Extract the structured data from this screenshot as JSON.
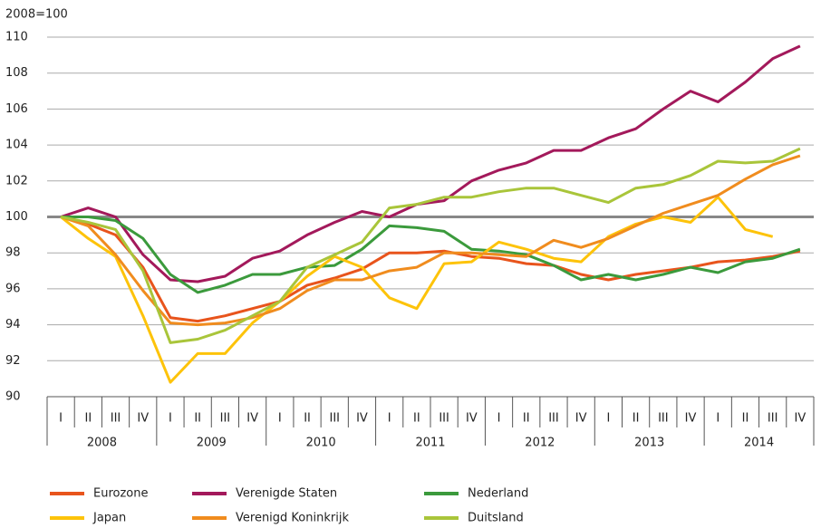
{
  "chart_data": {
    "type": "line",
    "y_label": "2008=100",
    "categories": [
      "I",
      "II",
      "III",
      "IV",
      "I",
      "II",
      "III",
      "IV",
      "I",
      "II",
      "III",
      "IV",
      "I",
      "II",
      "III",
      "IV",
      "I",
      "II",
      "III",
      "IV",
      "I",
      "II",
      "III",
      "IV",
      "I",
      "II",
      "III",
      "IV"
    ],
    "groups": [
      "2008",
      "2009",
      "2010",
      "2011",
      "2012",
      "2013",
      "2014"
    ],
    "ylim": [
      90,
      110
    ],
    "yticks": [
      90,
      92,
      94,
      96,
      98,
      100,
      102,
      104,
      106,
      108,
      110
    ],
    "grid": true,
    "reference_line": 100,
    "series": [
      {
        "name": "Eurozone",
        "color": "#e8541c",
        "values": [
          100,
          99.6,
          99.0,
          97.2,
          94.4,
          94.2,
          94.5,
          94.9,
          95.3,
          96.2,
          96.6,
          97.1,
          98.0,
          98.0,
          98.1,
          97.8,
          97.7,
          97.4,
          97.3,
          96.8,
          96.5,
          96.8,
          97.0,
          97.2,
          97.5,
          97.6,
          97.8,
          98.1
        ]
      },
      {
        "name": "Verenigde Staten",
        "color": "#a3195b",
        "values": [
          100,
          100.5,
          100.0,
          97.9,
          96.5,
          96.4,
          96.7,
          97.7,
          98.1,
          99.0,
          99.7,
          100.3,
          100.0,
          100.7,
          100.9,
          102.0,
          102.6,
          103.0,
          103.7,
          103.7,
          104.4,
          104.9,
          106.0,
          107.0,
          106.4,
          107.5,
          108.8,
          109.5
        ]
      },
      {
        "name": "Nederland",
        "color": "#3b9a3c",
        "values": [
          100,
          100.0,
          99.8,
          98.8,
          96.8,
          95.8,
          96.2,
          96.8,
          96.8,
          97.2,
          97.3,
          98.2,
          99.5,
          99.4,
          99.2,
          98.2,
          98.1,
          97.9,
          97.3,
          96.5,
          96.8,
          96.5,
          96.8,
          97.2,
          96.9,
          97.5,
          97.7,
          98.2
        ]
      },
      {
        "name": "Japan",
        "color": "#fdc30a",
        "values": [
          100,
          98.8,
          97.8,
          94.5,
          90.8,
          92.4,
          92.4,
          94.1,
          95.3,
          96.7,
          97.8,
          97.2,
          95.5,
          94.9,
          97.4,
          97.5,
          98.6,
          98.2,
          97.7,
          97.5,
          98.9,
          99.6,
          100.0,
          99.7,
          101.1,
          99.3,
          98.9,
          null
        ]
      },
      {
        "name": "Verenigd Koninkrijk",
        "color": "#f08c1e",
        "values": [
          100,
          99.5,
          97.9,
          95.9,
          94.1,
          94.0,
          94.1,
          94.4,
          94.9,
          95.9,
          96.5,
          96.5,
          97.0,
          97.2,
          98.0,
          98.0,
          97.9,
          97.8,
          98.7,
          98.3,
          98.8,
          99.5,
          100.2,
          100.7,
          101.2,
          102.1,
          102.9,
          103.4
        ]
      },
      {
        "name": "Duitsland",
        "color": "#a9c53a",
        "values": [
          100,
          99.7,
          99.3,
          97.0,
          93.0,
          93.2,
          93.7,
          94.5,
          95.3,
          97.2,
          97.9,
          98.6,
          100.5,
          100.7,
          101.1,
          101.1,
          101.4,
          101.6,
          101.6,
          101.2,
          100.8,
          101.6,
          101.8,
          102.3,
          103.1,
          103.0,
          103.1,
          103.8
        ]
      }
    ]
  }
}
